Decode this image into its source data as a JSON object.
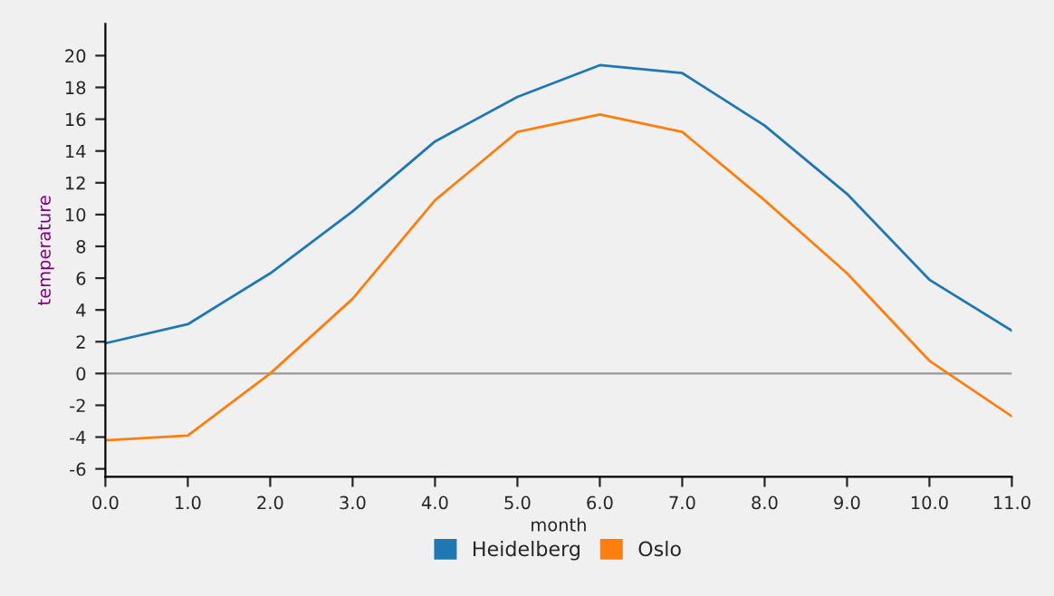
{
  "chart_data": {
    "type": "line",
    "xlabel": "month",
    "ylabel": "temperature",
    "x": [
      0,
      1,
      2,
      3,
      4,
      5,
      6,
      7,
      8,
      9,
      10,
      11
    ],
    "series": [
      {
        "name": "Heidelberg",
        "color": "#1f77b4",
        "values": [
          1.9,
          3.1,
          6.3,
          10.2,
          14.6,
          17.4,
          19.4,
          18.9,
          15.6,
          11.3,
          5.9,
          2.7
        ]
      },
      {
        "name": "Oslo",
        "color": "#ff7f0e",
        "values": [
          -4.2,
          -3.9,
          0.0,
          4.7,
          10.9,
          15.2,
          16.3,
          15.2,
          10.9,
          6.3,
          0.8,
          -2.7
        ]
      }
    ],
    "xlim": [
      0,
      11
    ],
    "xticks": [
      {
        "value": 0,
        "label": "0.0"
      },
      {
        "value": 1,
        "label": "1.0"
      },
      {
        "value": 2,
        "label": "2.0"
      },
      {
        "value": 3,
        "label": "3.0"
      },
      {
        "value": 4,
        "label": "4.0"
      },
      {
        "value": 5,
        "label": "5.0"
      },
      {
        "value": 6,
        "label": "6.0"
      },
      {
        "value": 7,
        "label": "7.0"
      },
      {
        "value": 8,
        "label": "8.0"
      },
      {
        "value": 9,
        "label": "9.0"
      },
      {
        "value": 10,
        "label": "10.0"
      },
      {
        "value": 11,
        "label": "11.0"
      }
    ],
    "ylim": [
      -6.5,
      22
    ],
    "yticks": [
      -6,
      -4,
      -2,
      0,
      2,
      4,
      6,
      8,
      10,
      12,
      14,
      16,
      18,
      20
    ],
    "ref_lines": [
      {
        "axis": "y",
        "value": 0,
        "color": "#999999"
      }
    ],
    "grid": false,
    "legend": "bottom",
    "marker": "none",
    "line_style": "solid"
  }
}
